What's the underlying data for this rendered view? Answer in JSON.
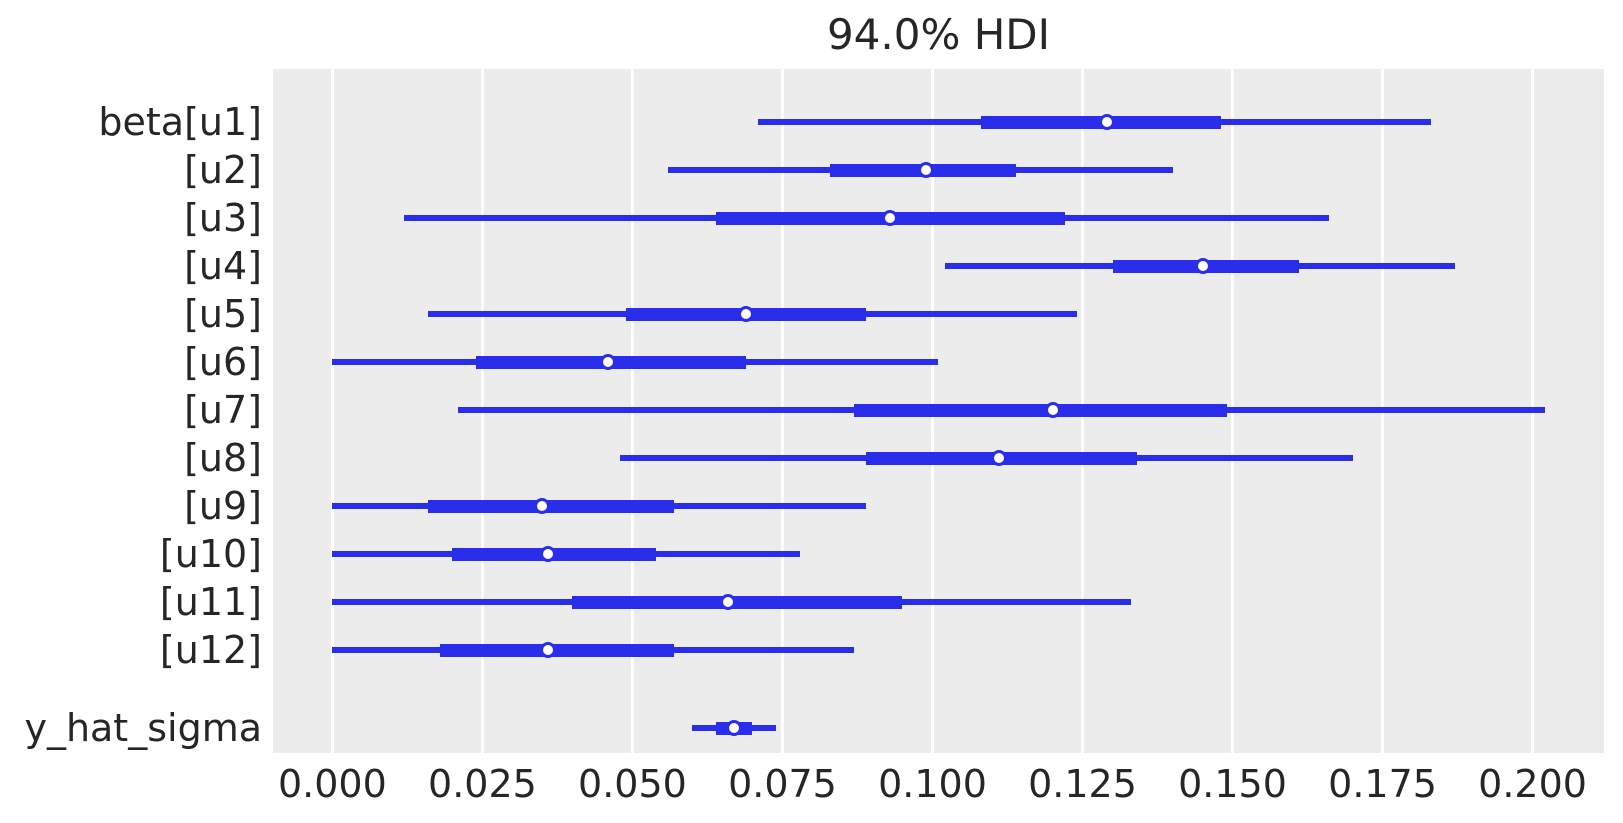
{
  "title": "94.0% HDI",
  "chart_data": {
    "type": "forest_hdi",
    "title": "94.0% HDI",
    "hdi_probability": "94.0%",
    "xlabel": "",
    "ylabel": "",
    "xlim": [
      -0.0099,
      0.2119
    ],
    "grid": "vertical-white-on-gray",
    "legend": "none",
    "x_ticks": [
      0.0,
      0.025,
      0.05,
      0.075,
      0.1,
      0.125,
      0.15,
      0.175,
      0.2
    ],
    "x_tick_labels": [
      "0.000",
      "0.025",
      "0.050",
      "0.075",
      "0.100",
      "0.125",
      "0.150",
      "0.175",
      "0.200"
    ],
    "colors": {
      "line": "#2a2eec",
      "marker_face": "#ffffff",
      "panel_background": "#ececec",
      "grid": "#ffffff",
      "text": "#262626",
      "figure_background": "#ffffff"
    },
    "rows": [
      {
        "label": "beta[u1]",
        "slot": 0,
        "hdi_lower": 0.071,
        "quartile_lower": 0.108,
        "point": 0.129,
        "quartile_upper": 0.148,
        "hdi_upper": 0.183
      },
      {
        "label": "[u2]",
        "slot": 1,
        "hdi_lower": 0.056,
        "quartile_lower": 0.083,
        "point": 0.099,
        "quartile_upper": 0.114,
        "hdi_upper": 0.14
      },
      {
        "label": "[u3]",
        "slot": 2,
        "hdi_lower": 0.012,
        "quartile_lower": 0.064,
        "point": 0.093,
        "quartile_upper": 0.122,
        "hdi_upper": 0.166
      },
      {
        "label": "[u4]",
        "slot": 3,
        "hdi_lower": 0.102,
        "quartile_lower": 0.13,
        "point": 0.145,
        "quartile_upper": 0.161,
        "hdi_upper": 0.187
      },
      {
        "label": "[u5]",
        "slot": 4,
        "hdi_lower": 0.016,
        "quartile_lower": 0.049,
        "point": 0.069,
        "quartile_upper": 0.089,
        "hdi_upper": 0.124
      },
      {
        "label": "[u6]",
        "slot": 5,
        "hdi_lower": 0.0,
        "quartile_lower": 0.024,
        "point": 0.046,
        "quartile_upper": 0.069,
        "hdi_upper": 0.101
      },
      {
        "label": "[u7]",
        "slot": 6,
        "hdi_lower": 0.021,
        "quartile_lower": 0.087,
        "point": 0.12,
        "quartile_upper": 0.149,
        "hdi_upper": 0.202
      },
      {
        "label": "[u8]",
        "slot": 7,
        "hdi_lower": 0.048,
        "quartile_lower": 0.089,
        "point": 0.111,
        "quartile_upper": 0.134,
        "hdi_upper": 0.17
      },
      {
        "label": "[u9]",
        "slot": 8,
        "hdi_lower": 0.0,
        "quartile_lower": 0.016,
        "point": 0.035,
        "quartile_upper": 0.057,
        "hdi_upper": 0.089
      },
      {
        "label": "[u10]",
        "slot": 9,
        "hdi_lower": 0.0,
        "quartile_lower": 0.02,
        "point": 0.036,
        "quartile_upper": 0.054,
        "hdi_upper": 0.078
      },
      {
        "label": "[u11]",
        "slot": 10,
        "hdi_lower": 0.0,
        "quartile_lower": 0.04,
        "point": 0.066,
        "quartile_upper": 0.095,
        "hdi_upper": 0.133
      },
      {
        "label": "[u12]",
        "slot": 11,
        "hdi_lower": 0.0,
        "quartile_lower": 0.018,
        "point": 0.036,
        "quartile_upper": 0.057,
        "hdi_upper": 0.087
      },
      {
        "label": "y_hat_sigma",
        "slot": 12.625,
        "hdi_lower": 0.06,
        "quartile_lower": 0.064,
        "point": 0.067,
        "quartile_upper": 0.07,
        "hdi_upper": 0.074
      }
    ]
  }
}
